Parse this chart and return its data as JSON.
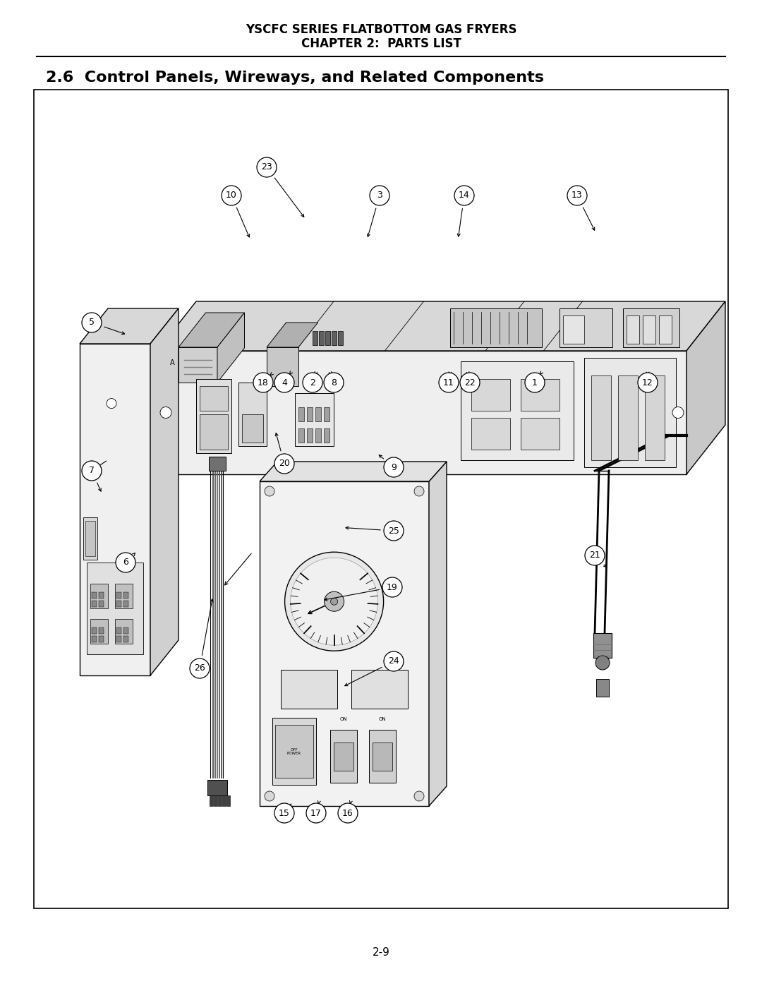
{
  "title_line1": "YSCFC SERIES FLATBOTTOM GAS FRYERS",
  "title_line2": "CHAPTER 2:  PARTS LIST",
  "section_title": "2.6  Control Panels, Wireways, and Related Components",
  "page_number": "2-9",
  "bg_color": "#ffffff",
  "text_color": "#000000",
  "title_fontsize": 12,
  "section_fontsize": 16,
  "callout_fontsize": 9,
  "page_num_fontsize": 11
}
